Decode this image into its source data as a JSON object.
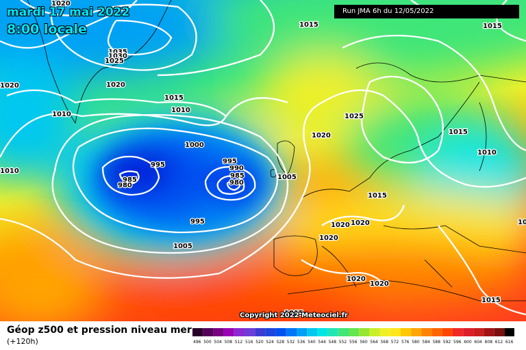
{
  "header": {
    "date": "mardi 17 mai 2022",
    "time": "8:00 locale",
    "run": "Run JMA 6h du 12/05/2022"
  },
  "copyright": "Copyright 2022 Meteociel.fr",
  "footer": {
    "title": "Géop z500 et pression niveau mer",
    "forecast_hour": "(+120h)"
  },
  "legend": {
    "values": [
      "496",
      "500",
      "504",
      "508",
      "512",
      "516",
      "520",
      "524",
      "528",
      "532",
      "536",
      "540",
      "544",
      "548",
      "552",
      "556",
      "560",
      "564",
      "568",
      "572",
      "576",
      "580",
      "584",
      "588",
      "592",
      "596",
      "600",
      "604",
      "608",
      "612",
      "616"
    ],
    "colors": [
      "#2a002a",
      "#55005a",
      "#7a0082",
      "#9a00b4",
      "#8c28d2",
      "#6e3cd6",
      "#3c3cd2",
      "#1e46dc",
      "#0050f0",
      "#0078f5",
      "#00a0f5",
      "#00c8f0",
      "#00e6e6",
      "#20e6b4",
      "#40e678",
      "#64e650",
      "#96e632",
      "#c8f028",
      "#f0f028",
      "#ffe61e",
      "#ffc800",
      "#ffa500",
      "#ff8200",
      "#ff6400",
      "#ff4600",
      "#f02828",
      "#dc1e28",
      "#c81e1e",
      "#a01414",
      "#781010",
      "#000000"
    ]
  },
  "map": {
    "background_colors": {
      "low": "#0014e6",
      "mid": "#00c8f0",
      "high": "#ffe61e",
      "hot": "#ff3c1e"
    },
    "isobar_labels": [
      "1020",
      "1015",
      "1015",
      "1035",
      "1030",
      "1025",
      "1020",
      "1020",
      "1010",
      "1015",
      "1010",
      "1000",
      "995",
      "1010",
      "985",
      "980",
      "995",
      "990",
      "985",
      "980",
      "1005",
      "1020",
      "1025",
      "1015",
      "1010",
      "995",
      "1005",
      "1015",
      "1020",
      "1020",
      "1020",
      "1020",
      "1020",
      "1020",
      "1015",
      "1015"
    ]
  }
}
